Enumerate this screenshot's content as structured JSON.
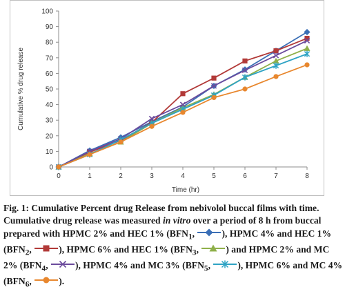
{
  "chart_data": {
    "type": "line",
    "title": "",
    "xlabel": "Time (hr)",
    "ylabel": "Cumulative % drug release",
    "xlim": [
      0,
      8
    ],
    "ylim": [
      0,
      100
    ],
    "x": [
      0,
      1,
      2,
      3,
      4,
      5,
      6,
      7,
      8
    ],
    "xticks": [
      "0",
      "1",
      "2",
      "3",
      "4",
      "5",
      "6",
      "7",
      "8"
    ],
    "yticks": [
      "0",
      "10",
      "20",
      "30",
      "40",
      "50",
      "60",
      "70",
      "80",
      "90",
      "100"
    ],
    "grid": false,
    "legend": "none",
    "series": [
      {
        "name": "BFN1",
        "color": "#3b6fb6",
        "marker": "diamond",
        "values": [
          0,
          10.5,
          19,
          29,
          38.5,
          52,
          62.5,
          74.5,
          86.5
        ]
      },
      {
        "name": "BFN2",
        "color": "#b23a38",
        "marker": "square",
        "values": [
          0,
          9.5,
          17,
          28.5,
          47,
          57,
          68,
          74.5,
          82.5
        ]
      },
      {
        "name": "BFN3",
        "color": "#8fb04a",
        "marker": "triangle",
        "values": [
          0,
          8.5,
          16,
          28,
          38,
          46.5,
          57.5,
          68,
          76
        ]
      },
      {
        "name": "BFN4",
        "color": "#6b4a9c",
        "marker": "x",
        "values": [
          0,
          10,
          18,
          31,
          40,
          52,
          62,
          71.5,
          81
        ]
      },
      {
        "name": "BFN5",
        "color": "#2ea3c4",
        "marker": "star",
        "values": [
          0,
          8,
          17.5,
          28,
          37,
          46,
          57.5,
          65,
          72.5
        ]
      },
      {
        "name": "BFN6",
        "color": "#e8872e",
        "marker": "circle",
        "values": [
          0,
          8,
          16,
          26,
          35,
          44.5,
          50,
          58,
          65.5
        ]
      }
    ]
  },
  "caption": {
    "fig_line": "Fig. 1: Cumulative Percent drug Release from nebivolol buccal films with time.",
    "desc_1": "Cumulative drug release was measured ",
    "desc_in_vitro": "in vitro",
    "desc_2": " over a period of 8 h from buccal prepared with HPMC 2% and HEC 1% (BFN",
    "s1": "1",
    "t1": ", ",
    "t1b": "), HPMC 4% and HEC 1% (BFN",
    "s2": "2",
    "t2": ", ",
    "t2b": "), HPMC 6% and HEC 1% (BFN",
    "s3": "3",
    "t3": ", ",
    "t3b": ") and HPMC 2% and MC 2% (BFN",
    "s4": "4",
    "t4": ", ",
    "t4b": "), HPMC 4% and MC 3% (BFN",
    "s5": "5",
    "t5": ", ",
    "t5b": "), HPMC 6% and MC 4% (BFN",
    "s6": "6",
    "t6": ", ",
    "t6b": ")."
  }
}
